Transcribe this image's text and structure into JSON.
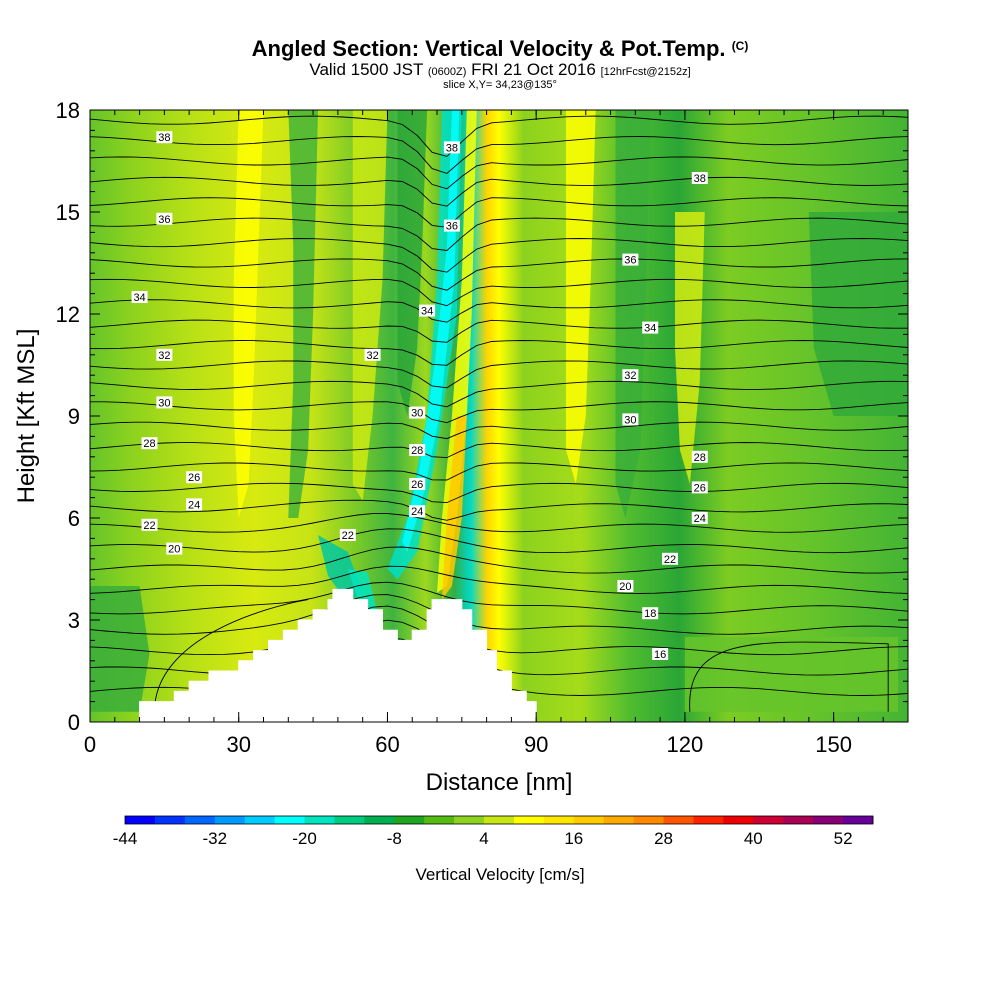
{
  "header": {
    "title": "Angled Section: Vertical Velocity & Pot.Temp.",
    "title_tag": "(C)",
    "valid_prefix": "Valid 1500 JST",
    "valid_utc": "(0600Z)",
    "valid_date": "FRI 21 Oct 2016",
    "forecast": "[12hrFcst@2152z]",
    "slice": "slice X,Y= 34,23@135°"
  },
  "chart_data": {
    "type": "heatmap",
    "xlabel": "Distance [nm]",
    "ylabel": "Height [Kft MSL]",
    "xlim": [
      0,
      165
    ],
    "ylim": [
      0,
      18
    ],
    "x_ticks": [
      "0",
      "30",
      "60",
      "90",
      "120",
      "150"
    ],
    "x_tick_values": [
      0,
      30,
      60,
      90,
      120,
      150
    ],
    "y_ticks": [
      "0",
      "3",
      "6",
      "9",
      "12",
      "15",
      "18"
    ],
    "y_tick_values": [
      0,
      3,
      6,
      9,
      12,
      15,
      18
    ],
    "colorbar": {
      "title": "Vertical Velocity [cm/s]",
      "labels": [
        "-44",
        "-32",
        "-20",
        "-8",
        "4",
        "16",
        "28",
        "40",
        "52"
      ],
      "colors": [
        "#0000ff",
        "#0033ff",
        "#0066ff",
        "#0099ff",
        "#00ccff",
        "#00ffff",
        "#00e5c0",
        "#00cc80",
        "#00b050",
        "#1ea620",
        "#55bb10",
        "#8cd21e",
        "#c8e614",
        "#ffff00",
        "#ffe600",
        "#ffcc00",
        "#ffaa00",
        "#ff8800",
        "#ff5500",
        "#ff2200",
        "#ee0000",
        "#cc0033",
        "#aa0055",
        "#880077",
        "#660099"
      ]
    },
    "terrain_top_kft": [
      [
        10,
        0.6
      ],
      [
        17,
        0.9
      ],
      [
        20,
        1.2
      ],
      [
        24,
        1.5
      ],
      [
        30,
        1.8
      ],
      [
        33,
        2.1
      ],
      [
        36,
        2.4
      ],
      [
        39,
        2.7
      ],
      [
        42,
        3.0
      ],
      [
        45,
        3.3
      ],
      [
        48,
        3.6
      ],
      [
        49,
        3.9
      ],
      [
        52,
        3.9
      ],
      [
        53,
        3.6
      ],
      [
        56,
        3.3
      ],
      [
        59,
        2.7
      ],
      [
        62,
        2.4
      ],
      [
        65,
        2.7
      ],
      [
        68,
        3.3
      ],
      [
        69,
        3.6
      ],
      [
        74,
        3.6
      ],
      [
        75,
        3.3
      ],
      [
        77,
        2.7
      ],
      [
        80,
        2.1
      ],
      [
        82,
        1.5
      ],
      [
        85,
        0.9
      ],
      [
        88,
        0.6
      ],
      [
        90,
        0.3
      ]
    ],
    "contour_levels": [
      "16",
      "18",
      "20",
      "22",
      "24",
      "26",
      "28",
      "30",
      "32",
      "34",
      "36",
      "38"
    ],
    "contour_labels": [
      {
        "text": "38",
        "x": 15,
        "y": 17.2
      },
      {
        "text": "38",
        "x": 73,
        "y": 16.9
      },
      {
        "text": "38",
        "x": 123,
        "y": 16.0
      },
      {
        "text": "36",
        "x": 15,
        "y": 14.8
      },
      {
        "text": "36",
        "x": 73,
        "y": 14.6
      },
      {
        "text": "36",
        "x": 109,
        "y": 13.6
      },
      {
        "text": "34",
        "x": 10,
        "y": 12.5
      },
      {
        "text": "34",
        "x": 68,
        "y": 12.1
      },
      {
        "text": "34",
        "x": 113,
        "y": 11.6
      },
      {
        "text": "32",
        "x": 15,
        "y": 10.8
      },
      {
        "text": "32",
        "x": 57,
        "y": 10.8
      },
      {
        "text": "32",
        "x": 109,
        "y": 10.2
      },
      {
        "text": "30",
        "x": 15,
        "y": 9.4
      },
      {
        "text": "30",
        "x": 66,
        "y": 9.1
      },
      {
        "text": "30",
        "x": 109,
        "y": 8.9
      },
      {
        "text": "28",
        "x": 12,
        "y": 8.2
      },
      {
        "text": "28",
        "x": 66,
        "y": 8.0
      },
      {
        "text": "28",
        "x": 123,
        "y": 7.8
      },
      {
        "text": "26",
        "x": 21,
        "y": 7.2
      },
      {
        "text": "26",
        "x": 66,
        "y": 7.0
      },
      {
        "text": "26",
        "x": 123,
        "y": 6.9
      },
      {
        "text": "24",
        "x": 21,
        "y": 6.4
      },
      {
        "text": "24",
        "x": 66,
        "y": 6.2
      },
      {
        "text": "24",
        "x": 123,
        "y": 6.0
      },
      {
        "text": "22",
        "x": 12,
        "y": 5.8
      },
      {
        "text": "22",
        "x": 52,
        "y": 5.5
      },
      {
        "text": "22",
        "x": 117,
        "y": 4.8
      },
      {
        "text": "20",
        "x": 17,
        "y": 5.1
      },
      {
        "text": "20",
        "x": 108,
        "y": 4.0
      },
      {
        "text": "18",
        "x": 113,
        "y": 3.2
      },
      {
        "text": "16",
        "x": 115,
        "y": 2.0
      }
    ]
  }
}
